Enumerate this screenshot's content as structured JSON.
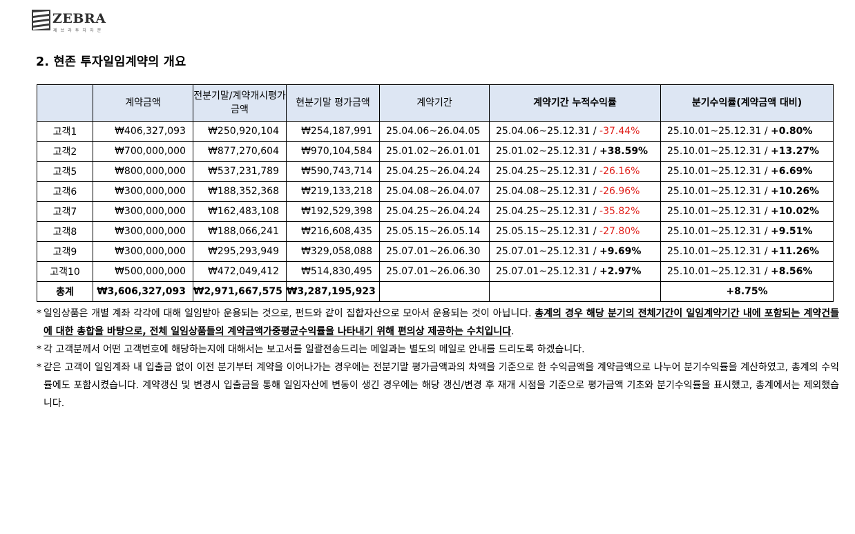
{
  "logo": {
    "name": "ZEBRA",
    "sub": "제 브 라 투 자 자 문"
  },
  "section_title": "2.  현존 투자일임계약의  개요",
  "table": {
    "headers": {
      "blank": "",
      "amount": "계약금액",
      "prev_eval": "전분기말/계약개시평가금액",
      "cur_eval": "현분기말 평가금액",
      "period": "계약기간",
      "cum_return": "계약기간 누적수익률",
      "q_return": "분기수익률(계약금액 대비)"
    },
    "rows": [
      {
        "client": "고객1",
        "amount": "₩406,327,093",
        "prev_eval": "₩250,920,104",
        "cur_eval": "₩254,187,991",
        "period": "25.04.06~26.04.05",
        "cum_range": "25.04.06~25.12.31",
        "cum_value": "-37.44%",
        "cum_negative": true,
        "q_range": "25.10.01~25.12.31",
        "q_value": "+0.80%"
      },
      {
        "client": "고객2",
        "amount": "₩700,000,000",
        "prev_eval": "₩877,270,604",
        "cur_eval": "₩970,104,584",
        "period": "25.01.02~26.01.01",
        "cum_range": "25.01.02~25.12.31",
        "cum_value": "+38.59%",
        "cum_negative": false,
        "q_range": "25.10.01~25.12.31",
        "q_value": "+13.27%"
      },
      {
        "client": "고객5",
        "amount": "₩800,000,000",
        "prev_eval": "₩537,231,789",
        "cur_eval": "₩590,743,714",
        "period": "25.04.25~26.04.24",
        "cum_range": "25.04.25~25.12.31",
        "cum_value": "-26.16%",
        "cum_negative": true,
        "q_range": "25.10.01~25.12.31",
        "q_value": "+6.69%"
      },
      {
        "client": "고객6",
        "amount": "₩300,000,000",
        "prev_eval": "₩188,352,368",
        "cur_eval": "₩219,133,218",
        "period": "25.04.08~26.04.07",
        "cum_range": "25.04.08~25.12.31",
        "cum_value": "-26.96%",
        "cum_negative": true,
        "q_range": "25.10.01~25.12.31",
        "q_value": "+10.26%"
      },
      {
        "client": "고객7",
        "amount": "₩300,000,000",
        "prev_eval": "₩162,483,108",
        "cur_eval": "₩192,529,398",
        "period": "25.04.25~26.04.24",
        "cum_range": "25.04.25~25.12.31",
        "cum_value": "-35.82%",
        "cum_negative": true,
        "q_range": "25.10.01~25.12.31",
        "q_value": "+10.02%"
      },
      {
        "client": "고객8",
        "amount": "₩300,000,000",
        "prev_eval": "₩188,066,241",
        "cur_eval": "₩216,608,435",
        "period": "25.05.15~26.05.14",
        "cum_range": "25.05.15~25.12.31",
        "cum_value": "-27.80%",
        "cum_negative": true,
        "q_range": "25.10.01~25.12.31",
        "q_value": "+9.51%"
      },
      {
        "client": "고객9",
        "amount": "₩300,000,000",
        "prev_eval": "₩295,293,949",
        "cur_eval": "₩329,058,088",
        "period": "25.07.01~26.06.30",
        "cum_range": "25.07.01~25.12.31",
        "cum_value": "+9.69%",
        "cum_negative": false,
        "q_range": "25.10.01~25.12.31",
        "q_value": "+11.26%"
      },
      {
        "client": "고객10",
        "amount": "₩500,000,000",
        "prev_eval": "₩472,049,412",
        "cur_eval": "₩514,830,495",
        "period": "25.07.01~26.06.30",
        "cum_range": "25.07.01~25.12.31",
        "cum_value": "+2.97%",
        "cum_negative": false,
        "q_range": "25.10.01~25.12.31",
        "q_value": "+8.56%"
      }
    ],
    "total": {
      "label": "총계",
      "amount": "₩3,606,327,093",
      "prev_eval": "₩2,971,667,575",
      "cur_eval": "₩3,287,195,923",
      "q_value": "+8.75%"
    },
    "separator": " / ",
    "colors": {
      "header_bg": "#dde6f3",
      "negative": "#e0201b"
    }
  },
  "notes": {
    "star": "*",
    "n1_plain": "일임상품은 개별 계좌 각각에 대해 일임받아 운용되는 것으로, 펀드와 같이 집합자산으로 모아서 운용되는 것이 아닙니다. ",
    "n1_bold": "총계의 경우 해당 분기의 전체기간이 일임계약기간 내에 포함되는 계약건들에 대한 총합을 바탕으로, 전체 일임상품들의 계약금액가중평균수익률을 나타내기 위해 편의상 제공하는 수치입니다",
    "n1_end": ".",
    "n2": "각 고객분께서 어떤 고객번호에 해당하는지에 대해서는 보고서를 일괄전송드리는 메일과는 별도의 메일로 안내를 드리도록 하겠습니다.",
    "n3": "같은 고객이 일임계좌 내 입출금 없이 이전 분기부터 계약을 이어나가는 경우에는 전분기말 평가금액과의 차액을 기준으로 한 수익금액을 계약금액으로 나누어 분기수익률을 계산하였고, 총계의 수익률에도 포함시켰습니다. 계약갱신 및 변경시 입출금을 통해 일임자산에 변동이 생긴 경우에는 해당 갱신/변경 후 재개 시점을 기준으로 평가금액 기초와 분기수익률을 표시했고, 총계에서는 제외했습니다."
  }
}
